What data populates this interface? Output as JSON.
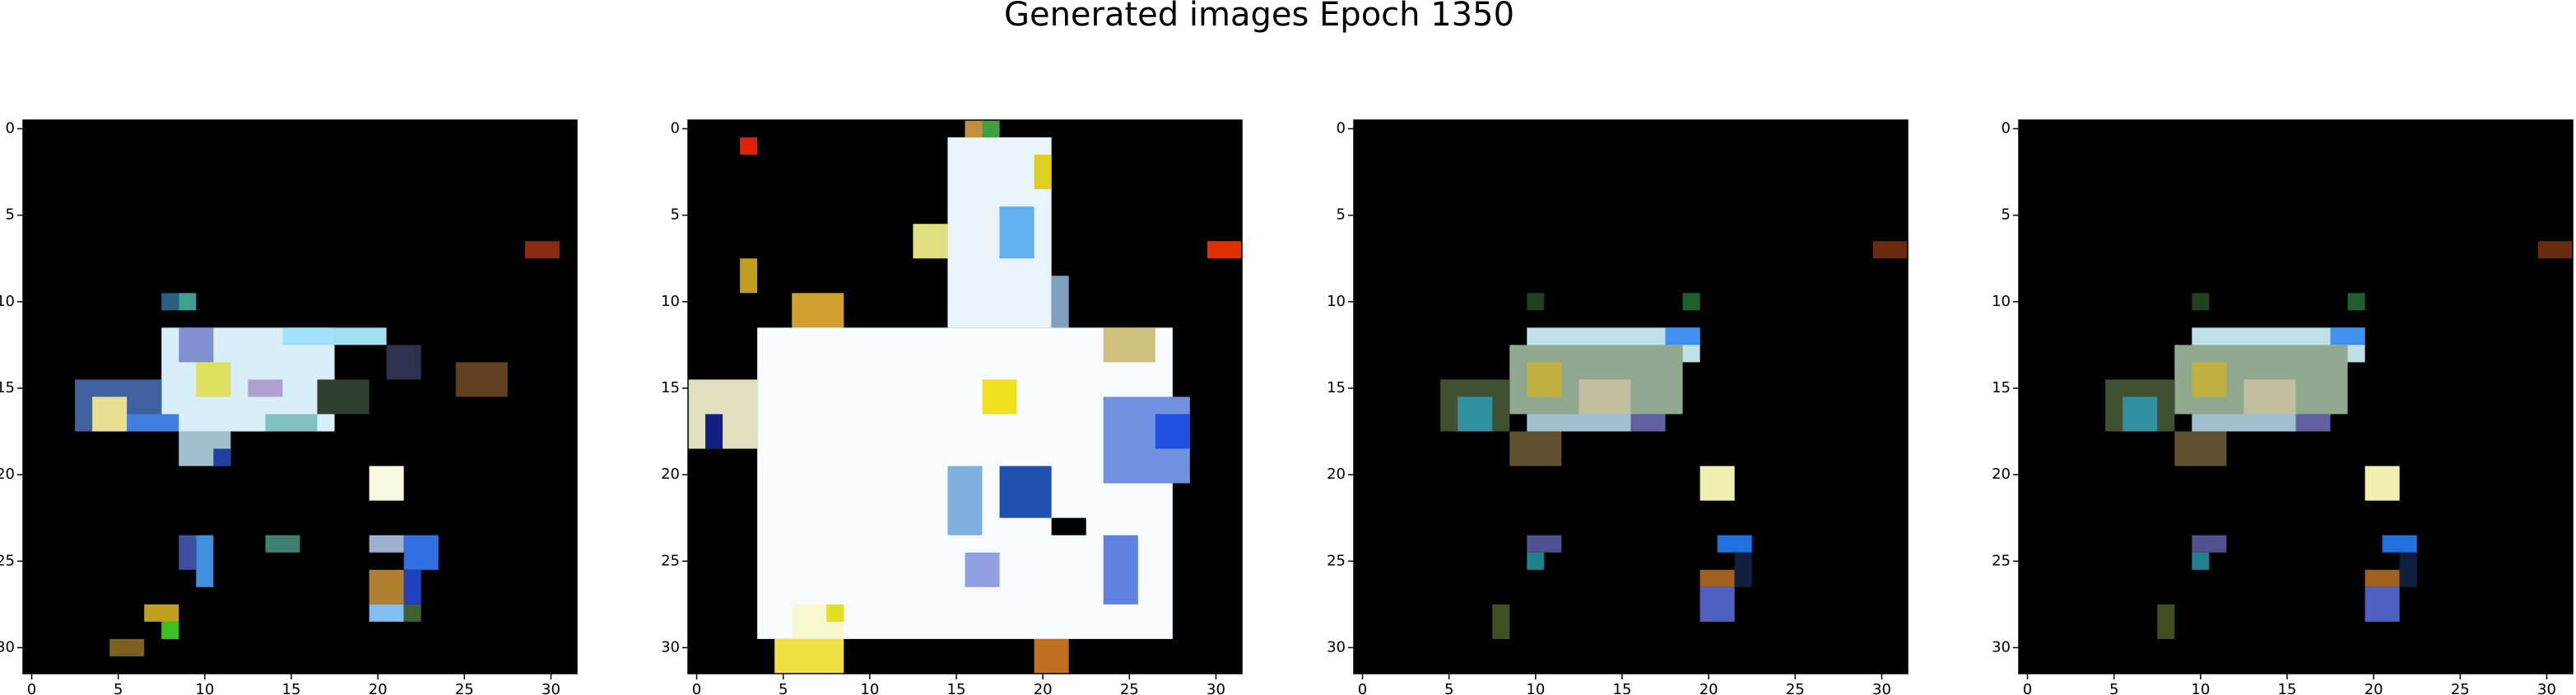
{
  "title": "Generated images Epoch 1350",
  "chart_data": [
    {
      "type": "image",
      "xlim": [
        -0.5,
        31.5
      ],
      "ylim": [
        31.5,
        -0.5
      ],
      "xticks": [
        0,
        5,
        10,
        15,
        20,
        25,
        30
      ],
      "yticks": [
        0,
        5,
        10,
        15,
        20,
        25,
        30
      ]
    },
    {
      "type": "image",
      "xlim": [
        -0.5,
        31.5
      ],
      "ylim": [
        31.5,
        -0.5
      ],
      "xticks": [
        0,
        5,
        10,
        15,
        20,
        25,
        30
      ],
      "yticks": [
        0,
        5,
        10,
        15,
        20,
        25,
        30
      ]
    },
    {
      "type": "image",
      "xlim": [
        -0.5,
        31.5
      ],
      "ylim": [
        31.5,
        -0.5
      ],
      "xticks": [
        0,
        5,
        10,
        15,
        20,
        25,
        30
      ],
      "yticks": [
        0,
        5,
        10,
        15,
        20,
        25,
        30
      ]
    },
    {
      "type": "image",
      "xlim": [
        -0.5,
        31.5
      ],
      "ylim": [
        31.5,
        -0.5
      ],
      "xticks": [
        0,
        5,
        10,
        15,
        20,
        25,
        30
      ],
      "yticks": [
        0,
        5,
        10,
        15,
        20,
        25,
        30
      ]
    }
  ]
}
